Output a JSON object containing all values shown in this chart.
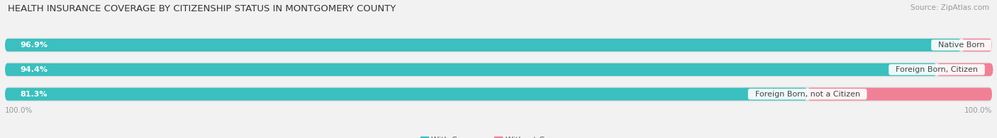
{
  "title": "HEALTH INSURANCE COVERAGE BY CITIZENSHIP STATUS IN MONTGOMERY COUNTY",
  "source": "Source: ZipAtlas.com",
  "categories": [
    "Native Born",
    "Foreign Born, Citizen",
    "Foreign Born, not a Citizen"
  ],
  "with_coverage": [
    96.9,
    94.4,
    81.3
  ],
  "without_coverage": [
    3.1,
    5.7,
    18.7
  ],
  "color_with": "#3BBFBF",
  "color_without": "#F08096",
  "bg_color": "#f2f2f2",
  "bar_bg": "#e2e2e2",
  "title_fontsize": 9.5,
  "label_fontsize": 8,
  "legend_fontsize": 8,
  "axis_label_fontsize": 7.5,
  "x_left_label": "100.0%",
  "x_right_label": "100.0%"
}
